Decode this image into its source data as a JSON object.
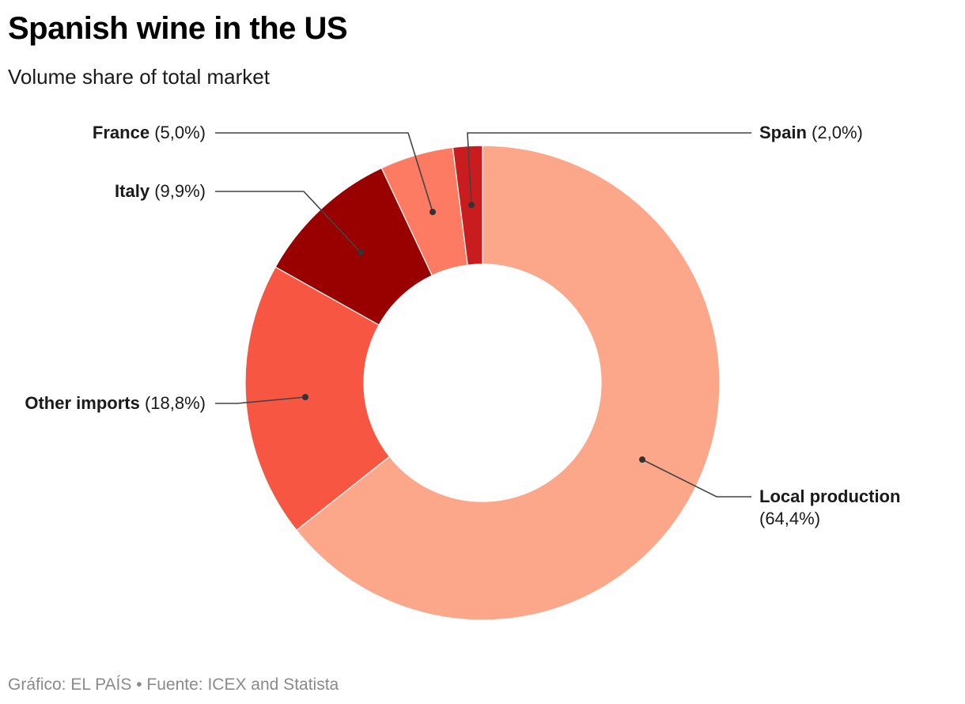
{
  "header": {
    "title": "Spanish wine in the US",
    "subtitle": "Volume share of total market"
  },
  "footer": {
    "credit": "Gráfico: EL PAÍS • Fuente: ICEX and Statista"
  },
  "labels": {
    "local": {
      "name": "Local production",
      "pct": "(64,4%)"
    },
    "other": {
      "name": "Other imports",
      "pct": "(18,8%)"
    },
    "italy": {
      "name": "Italy",
      "pct": "(9,9%)"
    },
    "france": {
      "name": "France",
      "pct": "(5,0%)"
    },
    "spain": {
      "name": "Spain",
      "pct": "(2,0%)"
    }
  },
  "chart_data": {
    "type": "pie",
    "subtype": "donut",
    "title": "Spanish wine in the US",
    "subtitle": "Volume share of total market",
    "categories": [
      "Local production",
      "Other imports",
      "Italy",
      "France",
      "Spain"
    ],
    "values": [
      64.4,
      18.8,
      9.9,
      5.0,
      2.0
    ],
    "unit": "%",
    "colors": [
      "#fca68a",
      "#f65642",
      "#990000",
      "#fd7b63",
      "#c81c1e"
    ],
    "start_angle_deg": 0,
    "direction": "clockwise",
    "legend": "callout labels",
    "source": "Gráfico: EL PAÍS • Fuente: ICEX and Statista"
  }
}
